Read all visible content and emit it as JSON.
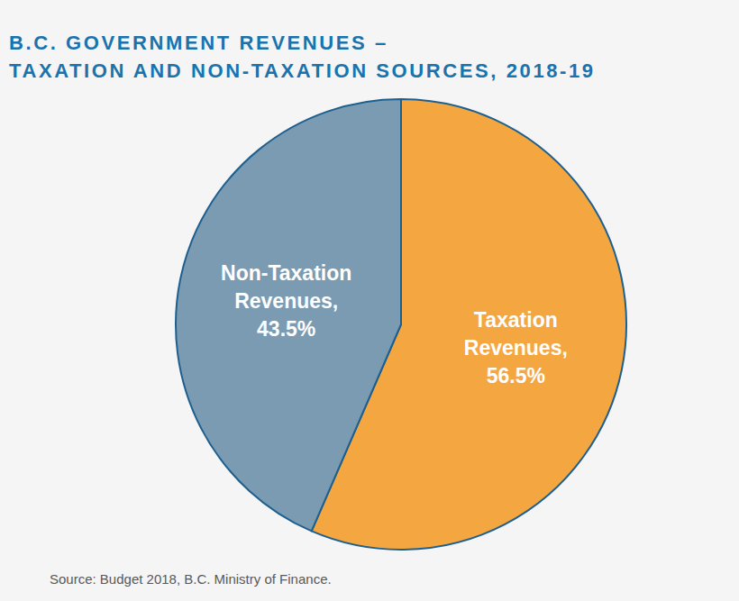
{
  "chart_data": {
    "type": "pie",
    "title": "B.C. GOVERNMENT REVENUES –\nTAXATION AND NON-TAXATION SOURCES, 2018-19",
    "categories": [
      "Taxation Revenues,",
      "Non-Taxation Revenues,"
    ],
    "values": [
      56.5,
      43.5
    ],
    "value_labels": [
      "56.5%",
      "43.5%"
    ],
    "colors": [
      "#f4a641",
      "#7a9bb2"
    ],
    "data_labels": true,
    "source": "Source: Budget 2018, B.C. Ministry of Finance."
  }
}
